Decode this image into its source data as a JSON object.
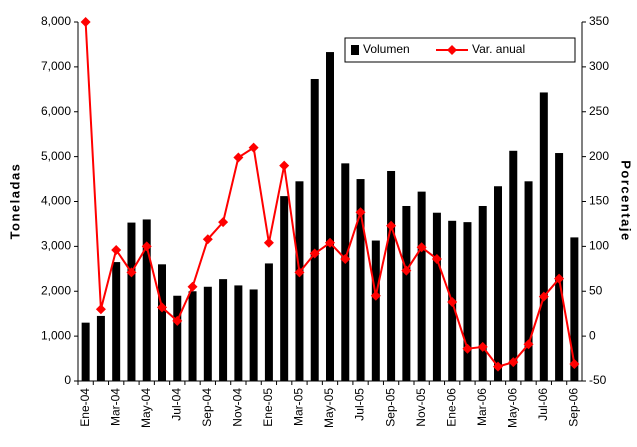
{
  "chart_data": {
    "type": "bar-line",
    "categories": [
      "Ene-04",
      null,
      "Mar-04",
      null,
      "May-04",
      null,
      "Jul-04",
      null,
      "Sep-04",
      null,
      "Nov-04",
      null,
      "Ene-05",
      null,
      "Mar-05",
      null,
      "May-05",
      null,
      "Jul-05",
      null,
      "Sep-05",
      null,
      "Nov-05",
      null,
      "Ene-06",
      null,
      "Mar-06",
      null,
      "May-06",
      null,
      "Jul-06",
      null,
      "Sep-06"
    ],
    "y_label": "Toneladas",
    "y2_label": "Porcentaje",
    "series": [
      {
        "name": "Volumen",
        "color": "#000000",
        "kind": "bar",
        "values": [
          1300,
          1450,
          2650,
          3530,
          3600,
          2600,
          1900,
          2000,
          2100,
          2270,
          2130,
          2040,
          2620,
          4120,
          4450,
          6730,
          7330,
          4850,
          4500,
          3130,
          4680,
          3900,
          4220,
          3750,
          3570,
          3540,
          3900,
          4340,
          5130,
          4450,
          6430,
          5080,
          3200
        ]
      },
      {
        "name": "Var. anual",
        "color": "#ff0000",
        "kind": "line",
        "axis": "y2",
        "values": [
          350,
          30,
          96,
          71,
          100,
          32,
          17,
          55,
          108,
          127,
          199,
          210,
          104,
          190,
          71,
          92,
          104,
          86,
          138,
          45,
          123,
          73,
          99,
          86,
          38,
          -14,
          -12,
          -34,
          -29,
          -9,
          44,
          64,
          -31
        ]
      }
    ],
    "ylim": [
      0,
      8000
    ],
    "yticks": [
      0,
      {
        "value": 1000,
        "label": "1,000"
      },
      {
        "value": 2000,
        "label": "2,000"
      },
      {
        "value": 3000,
        "label": "3,000"
      },
      {
        "value": 4000,
        "label": "4,000"
      },
      {
        "value": 5000,
        "label": "5,000"
      },
      {
        "value": 6000,
        "label": "6,000"
      },
      {
        "value": 7000,
        "label": "7,000"
      },
      {
        "value": 8000,
        "label": "8,000"
      }
    ],
    "y2lim": [
      -50,
      350
    ],
    "y2ticks": [
      -50,
      0,
      50,
      100,
      150,
      200,
      250,
      300,
      350
    ],
    "legend": "upper right",
    "grid": false
  }
}
